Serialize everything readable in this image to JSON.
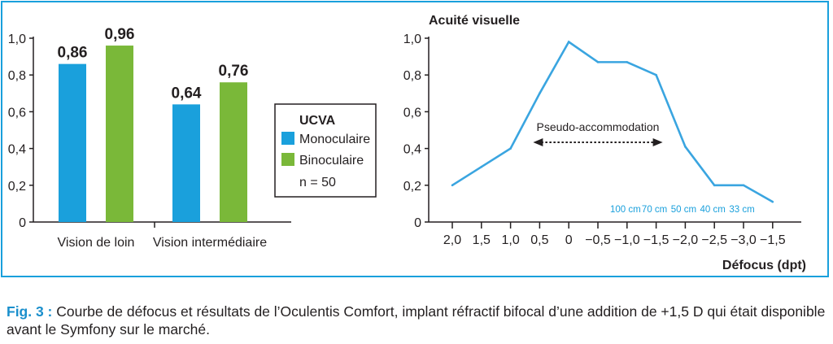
{
  "colors": {
    "frame": "#1aa0dc",
    "mono": "#1aa0dc",
    "bino": "#7ab839",
    "line": "#3aa5e0",
    "axis": "#231f20",
    "distance_labels": "#1aa0dc",
    "caption_label": "#1a8fcc"
  },
  "chart_data": [
    {
      "type": "bar",
      "categories": [
        "Vision de loin",
        "Vision intermédiaire"
      ],
      "series": [
        {
          "name": "Monoculaire",
          "values": [
            0.86,
            0.64
          ]
        },
        {
          "name": "Binoculaire",
          "values": [
            0.96,
            0.76
          ]
        }
      ],
      "value_labels": [
        [
          "0,86",
          "0,64"
        ],
        [
          "0,96",
          "0,76"
        ]
      ],
      "ylim": [
        0,
        1.0
      ],
      "yticks": [
        0,
        0.2,
        0.4,
        0.6,
        0.8,
        1.0
      ],
      "ytick_labels": [
        "0",
        "0,2",
        "0,4",
        "0,6",
        "0,8",
        "1,0"
      ],
      "legend": {
        "title": "UCVA",
        "entries": [
          "Monoculaire",
          "Binoculaire"
        ],
        "note": "n = 50",
        "placement": "right"
      }
    },
    {
      "type": "line",
      "title": "Acuité visuelle",
      "xlabel": "Défocus (dpt)",
      "ylabel": "",
      "x_tick_labels": [
        "2,0",
        "1,5",
        "1,0",
        "0,5",
        "0",
        "−0,5",
        "−1,0",
        "−1,5",
        "−2,0",
        "−2,5",
        "−3,0",
        "−1,5"
      ],
      "values": [
        0.2,
        0.3,
        0.4,
        0.7,
        0.98,
        0.87,
        0.87,
        0.8,
        0.41,
        0.2,
        0.2,
        0.11
      ],
      "ylim": [
        0,
        1.0
      ],
      "ytick_labels": [
        "0",
        "0,2",
        "0,4",
        "0,6",
        "0,8",
        "1,0"
      ],
      "annotation": {
        "text": "Pseudo-accommodation",
        "from_tick": 3,
        "to_tick": 7,
        "y": 0.46
      },
      "distance_labels": [
        {
          "text": "100 cm",
          "tick": 6
        },
        {
          "text": "70 cm",
          "tick": 7
        },
        {
          "text": "50 cm",
          "tick": 8
        },
        {
          "text": "40 cm",
          "tick": 9
        },
        {
          "text": "33 cm",
          "tick": 10
        }
      ]
    }
  ],
  "caption": {
    "label": "Fig. 3 :",
    "text": " Courbe de défocus et résultats de l’Oculentis Comfort, implant réfractif bifocal d’une addition de +1,5 D qui était disponible avant le Symfony sur le marché."
  }
}
